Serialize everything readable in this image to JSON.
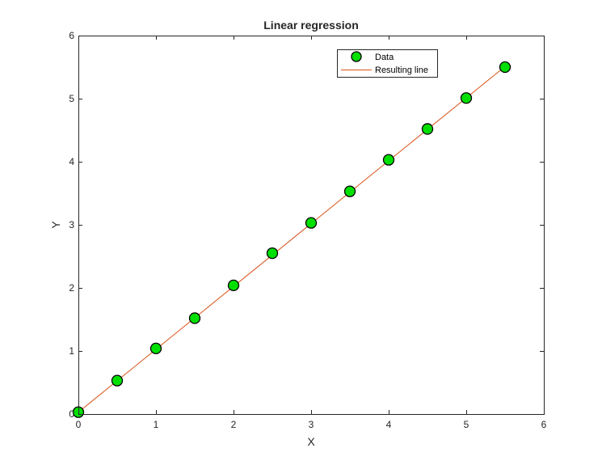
{
  "chart_data": {
    "type": "scatter",
    "title": "Linear regression",
    "xlabel": "X",
    "ylabel": "Y",
    "xlim": [
      0,
      6
    ],
    "ylim": [
      0,
      6
    ],
    "xticks": [
      0,
      1,
      2,
      3,
      4,
      5,
      6
    ],
    "yticks": [
      0,
      1,
      2,
      3,
      4,
      5,
      6
    ],
    "grid": false,
    "legend_position": "top-right",
    "series": [
      {
        "name": "Data",
        "kind": "markers",
        "color": "#00e000",
        "edge_color": "#000000",
        "x": [
          0,
          0.5,
          1,
          1.5,
          2,
          2.5,
          3,
          3.5,
          4,
          4.5,
          5,
          5.5
        ],
        "y": [
          0.03,
          0.53,
          1.04,
          1.52,
          2.04,
          2.55,
          3.03,
          3.53,
          4.03,
          4.52,
          5.01,
          5.5
        ]
      },
      {
        "name": "Resulting line",
        "kind": "line",
        "color": "#d95319",
        "x": [
          0,
          5.5
        ],
        "y": [
          0.03,
          5.51
        ]
      }
    ]
  }
}
